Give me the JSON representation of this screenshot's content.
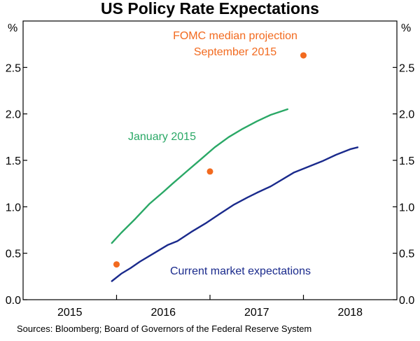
{
  "chart_data": {
    "type": "line",
    "title": "US Policy Rate Expectations",
    "ylabel_left": "%",
    "ylabel_right": "%",
    "ylim": [
      0,
      3.0
    ],
    "yticks": [
      0.0,
      0.5,
      1.0,
      1.5,
      2.0,
      2.5
    ],
    "ytick_labels": [
      "0.0",
      "0.5",
      "1.0",
      "1.5",
      "2.0",
      "2.5"
    ],
    "xlim": [
      2014.5,
      2018.5
    ],
    "xtick_positions": [
      2015,
      2016,
      2017,
      2018
    ],
    "xtick_labels": [
      "2015",
      "2016",
      "2017",
      "2018"
    ],
    "year_dividers": [
      2015.5,
      2016.5,
      2017.5
    ],
    "series": [
      {
        "name": "January 2015",
        "label": "January 2015",
        "color": "#2aa866",
        "points": [
          [
            2015.45,
            0.61
          ],
          [
            2015.55,
            0.72
          ],
          [
            2015.7,
            0.87
          ],
          [
            2015.85,
            1.03
          ],
          [
            2016.0,
            1.16
          ],
          [
            2016.1,
            1.25
          ],
          [
            2016.25,
            1.38
          ],
          [
            2016.4,
            1.51
          ],
          [
            2016.55,
            1.64
          ],
          [
            2016.7,
            1.75
          ],
          [
            2016.85,
            1.84
          ],
          [
            2017.0,
            1.92
          ],
          [
            2017.15,
            1.99
          ],
          [
            2017.33,
            2.05
          ]
        ]
      },
      {
        "name": "Current market expectations",
        "label": "Current market expectations",
        "color": "#1a2a8c",
        "points": [
          [
            2015.45,
            0.2
          ],
          [
            2015.55,
            0.28
          ],
          [
            2015.65,
            0.34
          ],
          [
            2015.75,
            0.41
          ],
          [
            2015.9,
            0.5
          ],
          [
            2016.05,
            0.59
          ],
          [
            2016.15,
            0.63
          ],
          [
            2016.3,
            0.73
          ],
          [
            2016.45,
            0.82
          ],
          [
            2016.6,
            0.92
          ],
          [
            2016.75,
            1.02
          ],
          [
            2016.9,
            1.1
          ],
          [
            2017.0,
            1.15
          ],
          [
            2017.15,
            1.22
          ],
          [
            2017.3,
            1.31
          ],
          [
            2017.4,
            1.37
          ],
          [
            2017.55,
            1.43
          ],
          [
            2017.7,
            1.49
          ],
          [
            2017.85,
            1.56
          ],
          [
            2018.0,
            1.62
          ],
          [
            2018.08,
            1.64
          ]
        ]
      }
    ],
    "scatter": {
      "name": "FOMC median projection September 2015",
      "label_lines": [
        "FOMC median projection",
        "September 2015"
      ],
      "color": "#f26a1f",
      "points": [
        [
          2015.5,
          0.38
        ],
        [
          2016.5,
          1.38
        ],
        [
          2017.5,
          2.63
        ]
      ]
    },
    "source": "Sources:  Bloomberg; Board of Governors of the Federal Reserve System"
  }
}
